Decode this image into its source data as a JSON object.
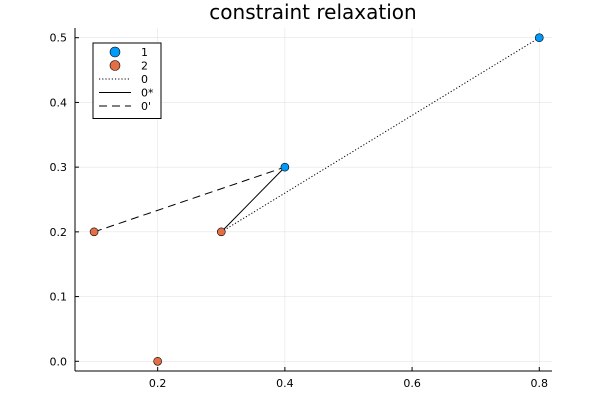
{
  "chart_data": {
    "type": "scatter",
    "title": "constraint relaxation",
    "xlabel": "",
    "ylabel": "",
    "xlim": [
      0.07,
      0.82
    ],
    "ylim": [
      -0.015,
      0.515
    ],
    "x_ticks": [
      0.2,
      0.4,
      0.6,
      0.8
    ],
    "x_tick_labels": [
      "0.2",
      "0.4",
      "0.6",
      "0.8"
    ],
    "y_ticks": [
      0.0,
      0.1,
      0.2,
      0.3,
      0.4,
      0.5
    ],
    "y_tick_labels": [
      "0.0",
      "0.1",
      "0.2",
      "0.3",
      "0.4",
      "0.5"
    ],
    "grid": true,
    "legend_position": "top-left",
    "series": [
      {
        "name": "1",
        "kind": "scatter",
        "color": "#009AFA",
        "points": [
          [
            0.4,
            0.3
          ],
          [
            0.8,
            0.5
          ]
        ]
      },
      {
        "name": "2",
        "kind": "scatter",
        "color": "#E36F47",
        "points": [
          [
            0.1,
            0.2
          ],
          [
            0.3,
            0.2
          ],
          [
            0.2,
            0.0
          ]
        ]
      },
      {
        "name": "0",
        "kind": "line",
        "style": "dotted",
        "color": "#000000",
        "points": [
          [
            0.3,
            0.2
          ],
          [
            0.8,
            0.5
          ]
        ]
      },
      {
        "name": "0*",
        "kind": "line",
        "style": "solid",
        "color": "#000000",
        "points": [
          [
            0.3,
            0.2
          ],
          [
            0.4,
            0.3
          ]
        ]
      },
      {
        "name": "0'",
        "kind": "line",
        "style": "dashed",
        "color": "#000000",
        "points": [
          [
            0.1,
            0.2
          ],
          [
            0.4,
            0.3
          ]
        ]
      }
    ]
  }
}
